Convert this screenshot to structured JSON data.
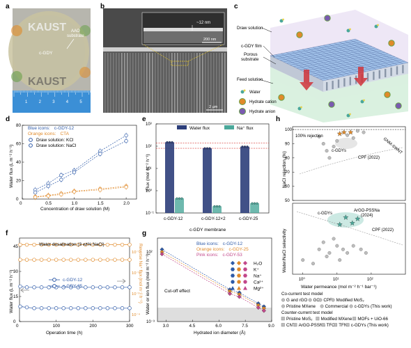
{
  "colors": {
    "blue": "#2e5aa8",
    "orange": "#e08a2a",
    "pink": "#c2478a",
    "teal": "#4aa89a",
    "gray": "#8c8c8c",
    "red": "#d6322e",
    "navy": "#2c3e7a",
    "ruler": "#3b8fd6",
    "wafer": "#c9c3a0"
  },
  "panel_labels": [
    "a",
    "b",
    "c",
    "d",
    "e",
    "f",
    "g",
    "h"
  ],
  "panel_a": {
    "logo_top": "KAUST",
    "logo_bottom": "KAUST",
    "label_substrate": "AAO\nsubstrate",
    "label_center": "c-GDY",
    "ruler_numbers": [
      "1",
      "2",
      "3",
      "4",
      "5",
      "6"
    ]
  },
  "panel_b": {
    "inset_scale": "~12 nm",
    "inset_bar": "200 nm",
    "main_bar": "2 µm"
  },
  "panel_c": {
    "labels": [
      "Draw solution",
      "c-GDY film",
      "Porous\nsubstrate",
      "Feed solution"
    ],
    "legend": [
      "Water",
      "Hydrate cation",
      "Hydrate anion"
    ]
  },
  "panel_d": {
    "legend_blue": "Blue icons:",
    "legend_blue_value": "c-GDY-12",
    "legend_orange": "Orange icons:",
    "legend_orange_value": "CTA",
    "legend_kcl": "Draw solution: KCl",
    "legend_nacl": "Draw solution: NaCl"
  },
  "panel_e": {
    "legend_water": "Water flux",
    "legend_na": "Na⁺ flux"
  },
  "panel_f": {
    "title": "Water desalination (3 wt% NaCl)",
    "legend": [
      "c-GDY-12",
      "c-GDY-25"
    ]
  },
  "panel_g": {
    "legend_blue": "Blue icons:",
    "legend_blue_value": "c-GDY-12",
    "legend_orange": "Orange icons:",
    "legend_orange_value": "c-GDY-25",
    "legend_pink": "Pink icons:",
    "legend_pink_value": "c-GDY-53",
    "ions": [
      "H₂O",
      "K⁺",
      "Na⁺",
      "Ca²⁺",
      "Mg²⁺"
    ],
    "cutoff": "Cut-off effect"
  },
  "panel_h": {
    "rejection_label": "100% rejection",
    "annotations_top": [
      "c-GDYs",
      "GNM-SWNT",
      "CPF (2022)"
    ],
    "annotations_bottom": [
      "c-GDYs",
      "ArGO-PSSNa\n(2024)",
      "CPF (2022)"
    ],
    "legend_title_1": "Co-current test model",
    "legend_row_1": [
      "G and rGO",
      "GO",
      "CPF",
      "Modified MoS₂"
    ],
    "legend_row_2": [
      "Pristine MXene",
      "Commercial",
      "c-GDYs (This work)"
    ],
    "legend_title_2": "Counter-current test model",
    "legend_row_3": [
      "Pristine MoS₂",
      "Modified MXene",
      "MOFs + UiO-66"
    ],
    "legend_row_4": [
      "CNT",
      "ArGO-PSSNa",
      "TFC",
      "TFN",
      "c-GDYs (This work)"
    ]
  },
  "chart_data": [
    {
      "panel": "d",
      "type": "scatter",
      "xlabel": "Concentration of draw solution (M)",
      "ylabel": "Water flux (L m⁻² h⁻¹)",
      "xlim": [
        0,
        2.2
      ],
      "ylim": [
        0,
        80
      ],
      "xticks": [
        0,
        0.5,
        1.0,
        1.5,
        2.0
      ],
      "yticks": [
        0,
        20,
        40,
        60,
        80
      ],
      "series": [
        {
          "name": "Draw solution: KCl",
          "color": "blue",
          "marker": "circle-left",
          "x": [
            0.25,
            0.5,
            0.75,
            1.0,
            1.5,
            2.0
          ],
          "y": [
            10,
            17,
            26,
            31,
            52,
            69
          ]
        },
        {
          "name": "Draw solution: NaCl",
          "color": "blue",
          "marker": "circle-right",
          "x": [
            0.25,
            0.5,
            0.75,
            1.0,
            1.5,
            2.0
          ],
          "y": [
            7,
            14,
            21,
            29,
            49,
            63
          ]
        },
        {
          "color": "orange",
          "marker": "circle-left",
          "x": [
            0.25,
            0.5,
            0.75,
            1.0,
            1.5,
            2.0
          ],
          "y": [
            2.5,
            4,
            6,
            8.5,
            11,
            14
          ]
        },
        {
          "color": "orange",
          "marker": "circle-right",
          "x": [
            0.25,
            0.5,
            0.75,
            1.0,
            1.5,
            2.0
          ],
          "y": [
            2,
            3.5,
            5,
            8,
            10,
            13
          ]
        }
      ]
    },
    {
      "panel": "e",
      "type": "bar",
      "categories": [
        "c-GDY-12",
        "c-GDY-12×2",
        "c-GDY-25"
      ],
      "xlabel": "c-GDY membrane",
      "ylabel": "Flux (mol m⁻² h⁻¹)",
      "ylog": true,
      "ylim": [
        0.1,
        1000
      ],
      "yticks": [
        "10⁻¹",
        "10⁰",
        "10¹",
        "10²",
        "10³"
      ],
      "series": [
        {
          "name": "Water flux",
          "color": "navy",
          "values": [
            150,
            80,
            95
          ]
        },
        {
          "name": "Na⁺ flux",
          "color": "teal",
          "values": [
            0.45,
            0.2,
            0.27
          ]
        }
      ],
      "reference_lines": [
        140,
        80
      ]
    },
    {
      "panel": "f",
      "type": "line",
      "title": "Water desalination (3 wt% NaCl)",
      "xlabel": "Operation time (h)",
      "ylabel": "Water flux (L m⁻² h⁻¹)",
      "y2label": "Reverse Na⁺ flux (mol m⁻² h⁻¹)",
      "xlim": [
        0,
        300
      ],
      "ylim": [
        0,
        50
      ],
      "xticks": [
        0,
        100,
        200,
        300
      ],
      "yticks": [
        0,
        15,
        30,
        45
      ],
      "y2ticks": [
        "10⁻⁴",
        "10⁻³",
        "10⁻²",
        "10⁻¹"
      ],
      "series": [
        {
          "name": "c-GDY-12",
          "color": "blue",
          "axis": "left",
          "x": [
            2,
            20,
            40,
            60,
            80,
            100,
            120,
            140,
            160,
            180,
            200,
            220,
            240,
            260,
            280,
            300
          ],
          "y": [
            21,
            20.5,
            20.5,
            20.5,
            20.5,
            20.5,
            20.5,
            20.5,
            20.5,
            20.5,
            20.5,
            20.5,
            20.5,
            20.5,
            20.5,
            20.5
          ]
        },
        {
          "name": "c-GDY-25",
          "color": "blue",
          "axis": "left",
          "x": [
            2,
            20,
            40,
            60,
            80,
            100,
            120,
            140,
            160,
            180,
            200,
            220,
            240,
            260,
            280,
            300
          ],
          "y": [
            9,
            8.5,
            8,
            8,
            8,
            8,
            8,
            8,
            8,
            8,
            8,
            8,
            8,
            8,
            8,
            8
          ]
        },
        {
          "color": "orange",
          "axis": "right",
          "x": [
            2,
            20,
            40,
            60,
            80,
            100,
            120,
            140,
            160,
            180,
            200,
            220,
            240,
            260,
            280,
            300
          ],
          "y": [
            46,
            46,
            46,
            46,
            46,
            46,
            46,
            46,
            46,
            46,
            46,
            46,
            46,
            46,
            46,
            46
          ]
        },
        {
          "color": "orange",
          "axis": "right",
          "x": [
            2,
            20,
            40,
            60,
            80,
            100,
            120,
            140,
            160,
            180,
            200,
            220,
            240,
            260,
            280,
            300
          ],
          "y": [
            37,
            37,
            37,
            37,
            37,
            37,
            37,
            37,
            37,
            37,
            37,
            37,
            37,
            37,
            37,
            37
          ]
        }
      ]
    },
    {
      "panel": "g",
      "type": "scatter",
      "xlabel": "Hydrated ion diameter (Å)",
      "ylabel": "Water or ion flux (mol m⁻² h⁻¹)",
      "xlim": [
        2.5,
        9.0
      ],
      "ylog": true,
      "xticks": [
        3.0,
        4.5,
        6.0,
        7.5,
        9.0
      ],
      "yticks": [
        "10⁻³",
        "10²"
      ],
      "cutoff_y": "below 10⁻²",
      "series": [
        {
          "name": "c-GDY-12",
          "color": "blue",
          "x": [
            2.76,
            6.62,
            7.16,
            8.24,
            8.56
          ],
          "y": [
            150,
            0.2,
            0.12,
            0.02,
            0.012
          ]
        },
        {
          "name": "c-GDY-25",
          "color": "orange",
          "x": [
            2.76,
            6.62,
            7.16,
            8.24,
            8.56
          ],
          "y": [
            100,
            0.15,
            0.09,
            0.015,
            0.009
          ]
        },
        {
          "name": "c-GDY-53",
          "color": "pink",
          "x": [
            2.76,
            6.62,
            7.16,
            8.24,
            8.56
          ],
          "y": [
            70,
            0.1,
            0.06,
            0.01,
            0.006
          ]
        }
      ]
    },
    {
      "panel": "h",
      "type": "scatter",
      "xlabel": "Water permeance (mol m⁻² h⁻¹ bar⁻¹)",
      "ylabel_top": "NaCl rejection (%)",
      "ylabel_bottom": "Water/NaCl selectivity",
      "xlog": true,
      "xticks": [
        "10⁰",
        "10¹",
        "10²"
      ],
      "yticks_top": [
        50,
        60,
        70,
        80,
        90,
        100
      ],
      "series": [
        {
          "name": "c-GDYs (This work)",
          "subplot": "top",
          "color": "orange",
          "x": [
            12,
            16,
            25
          ],
          "y": [
            97,
            98,
            98
          ]
        },
        {
          "name": "c-GDYs (This work)",
          "subplot": "bottom",
          "color": "teal",
          "x": [
            12,
            18,
            28,
            40
          ],
          "y": [
            0.7,
            0.8,
            0.72,
            0.78
          ]
        },
        {
          "name": "others",
          "subplot": "top",
          "color": "gray",
          "x": [
            3,
            4,
            5,
            6,
            8,
            10,
            20,
            30,
            40,
            60
          ],
          "y": [
            95,
            90,
            85,
            80,
            88,
            92,
            96,
            94,
            99,
            98
          ]
        },
        {
          "name": "others",
          "subplot": "bottom",
          "color": "gray",
          "x": [
            1,
            2,
            3,
            4,
            5,
            6,
            8,
            10,
            12,
            15,
            20,
            30,
            50,
            70
          ],
          "y": [
            0.2,
            0.15,
            0.35,
            0.45,
            0.25,
            0.3,
            0.5,
            0.4,
            0.2,
            0.35,
            0.3,
            0.4,
            0.35,
            0.3
          ]
        }
      ]
    }
  ]
}
